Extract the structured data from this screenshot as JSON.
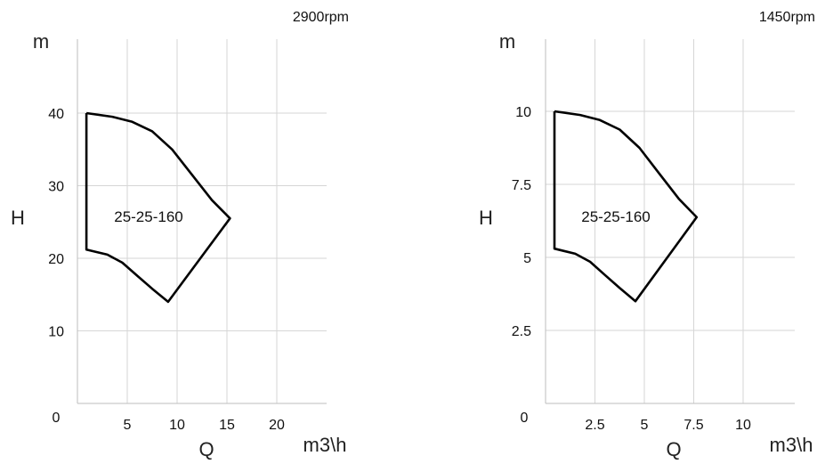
{
  "chart_data": [
    {
      "type": "line",
      "speed_label": "2900rpm",
      "model_label": "25-25-160",
      "xlabel": "Q",
      "ylabel": "H",
      "x_unit": "m3\\h",
      "y_unit": "m",
      "origin_label": "0",
      "xlim": [
        0,
        25
      ],
      "ylim": [
        0,
        50
      ],
      "x_ticks": [
        5,
        10,
        15,
        20
      ],
      "x_tick_labels": [
        "5",
        "10",
        "15",
        "20"
      ],
      "y_ticks": [
        10,
        20,
        30,
        40
      ],
      "y_tick_labels": [
        "10",
        "20",
        "30",
        "40"
      ],
      "grid": true,
      "series": [
        {
          "x": [
            0.9,
            3.5,
            5.5,
            7.5,
            9.5,
            11.5,
            13.5,
            15.3,
            9.1,
            7.5,
            6,
            4.5,
            3,
            1.5,
            0.9,
            0.9
          ],
          "y": [
            40,
            39.5,
            38.8,
            37.5,
            35,
            31.5,
            28,
            25.5,
            14,
            15.8,
            17.6,
            19.4,
            20.5,
            21,
            21.2,
            40
          ]
        }
      ]
    },
    {
      "type": "line",
      "speed_label": "1450rpm",
      "model_label": "25-25-160",
      "xlabel": "Q",
      "ylabel": "H",
      "x_unit": "m3\\h",
      "y_unit": "m",
      "origin_label": "0",
      "xlim": [
        0,
        12.5
      ],
      "ylim": [
        0,
        12.5
      ],
      "x_ticks": [
        2.5,
        5,
        7.5,
        10
      ],
      "x_tick_labels": [
        "2.5",
        "5",
        "7.5",
        "10"
      ],
      "y_ticks": [
        2.5,
        5,
        7.5,
        10
      ],
      "y_tick_labels": [
        "2.5",
        "5",
        "7.5",
        "10"
      ],
      "grid": true,
      "series": [
        {
          "x": [
            0.45,
            1.75,
            2.75,
            3.75,
            4.75,
            5.75,
            6.75,
            7.65,
            4.55,
            3.75,
            3,
            2.25,
            1.5,
            0.75,
            0.45,
            0.45
          ],
          "y": [
            10,
            9.875,
            9.7,
            9.375,
            8.75,
            7.875,
            7,
            6.375,
            3.5,
            3.95,
            4.4,
            4.85,
            5.125,
            5.25,
            5.3,
            10
          ]
        }
      ]
    }
  ]
}
